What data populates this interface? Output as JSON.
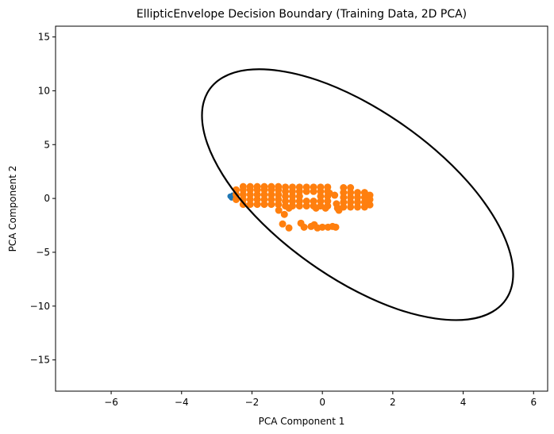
{
  "chart_data": {
    "type": "scatter",
    "title": "EllipticEnvelope Decision Boundary (Training Data, 2D PCA)",
    "xlabel": "PCA Component 1",
    "ylabel": "PCA Component 2",
    "xlim": [
      -7.58,
      6.4
    ],
    "ylim": [
      -17.9,
      16.0
    ],
    "xticks": [
      -6,
      -4,
      -2,
      0,
      2,
      4,
      6
    ],
    "yticks": [
      -15,
      -10,
      -5,
      0,
      5,
      10,
      15
    ],
    "xtick_labels": [
      "−6",
      "−4",
      "−2",
      "0",
      "2",
      "4",
      "6"
    ],
    "ytick_labels": [
      "−15",
      "−10",
      "−5",
      "0",
      "5",
      "10",
      "15"
    ],
    "grid": false,
    "colors": {
      "inlier": "#ff7f0e",
      "outlier": "#1f77b4",
      "boundary": "#000000"
    },
    "boundary": [
      [
        5.42,
        -7.0
      ],
      [
        5.27,
        -4.41
      ],
      [
        4.83,
        -1.49
      ],
      [
        4.13,
        1.55
      ],
      [
        3.21,
        4.51
      ],
      [
        2.14,
        7.18
      ],
      [
        1.0,
        9.39
      ],
      [
        -0.14,
        10.99
      ],
      [
        -1.21,
        11.85
      ],
      [
        -2.13,
        11.94
      ],
      [
        -2.83,
        11.23
      ],
      [
        -3.27,
        9.79
      ],
      [
        -3.42,
        7.7
      ],
      [
        -3.27,
        5.1
      ],
      [
        -2.83,
        2.19
      ],
      [
        -2.13,
        -0.85
      ],
      [
        -1.21,
        -3.81
      ],
      [
        -0.14,
        -6.48
      ],
      [
        1.0,
        -8.69
      ],
      [
        2.14,
        -10.29
      ],
      [
        3.21,
        -11.15
      ],
      [
        4.13,
        -11.24
      ],
      [
        4.83,
        -10.53
      ],
      [
        5.27,
        -9.09
      ]
    ],
    "outlier_points": [
      [
        -2.62,
        0.2
      ],
      [
        -2.58,
        0.05
      ],
      [
        -2.55,
        0.3
      ],
      [
        -2.5,
        0.1
      ]
    ],
    "inlier_points": [
      [
        -2.45,
        -0.1
      ],
      [
        -2.45,
        0.35
      ],
      [
        -2.45,
        0.8
      ],
      [
        -2.25,
        -0.55
      ],
      [
        -2.25,
        -0.1
      ],
      [
        -2.25,
        0.35
      ],
      [
        -2.25,
        0.8
      ],
      [
        -2.25,
        1.1
      ],
      [
        -2.05,
        -0.55
      ],
      [
        -2.05,
        -0.1
      ],
      [
        -2.05,
        0.35
      ],
      [
        -2.05,
        0.8
      ],
      [
        -2.05,
        1.1
      ],
      [
        -1.85,
        -0.55
      ],
      [
        -1.85,
        -0.1
      ],
      [
        -1.85,
        0.35
      ],
      [
        -1.85,
        0.8
      ],
      [
        -1.85,
        1.1
      ],
      [
        -1.65,
        -0.55
      ],
      [
        -1.65,
        -0.1
      ],
      [
        -1.65,
        0.35
      ],
      [
        -1.65,
        0.8
      ],
      [
        -1.65,
        1.1
      ],
      [
        -1.45,
        -0.55
      ],
      [
        -1.45,
        -0.1
      ],
      [
        -1.45,
        0.35
      ],
      [
        -1.45,
        0.8
      ],
      [
        -1.45,
        1.1
      ],
      [
        -1.25,
        -0.55
      ],
      [
        -1.25,
        -0.1
      ],
      [
        -1.25,
        0.35
      ],
      [
        -1.25,
        0.8
      ],
      [
        -1.25,
        1.1
      ],
      [
        -1.05,
        -0.7
      ],
      [
        -1.05,
        -0.25
      ],
      [
        -1.05,
        0.2
      ],
      [
        -1.05,
        0.65
      ],
      [
        -1.05,
        1.05
      ],
      [
        -0.85,
        -0.7
      ],
      [
        -0.85,
        -0.25
      ],
      [
        -0.85,
        0.2
      ],
      [
        -0.85,
        0.65
      ],
      [
        -0.85,
        1.05
      ],
      [
        -0.65,
        -0.7
      ],
      [
        -0.65,
        -0.25
      ],
      [
        -0.65,
        0.2
      ],
      [
        -0.65,
        0.65
      ],
      [
        -0.65,
        1.05
      ],
      [
        -0.45,
        -0.7
      ],
      [
        -0.45,
        -0.25
      ],
      [
        -0.45,
        0.65
      ],
      [
        -0.45,
        1.05
      ],
      [
        -0.25,
        -0.7
      ],
      [
        -0.25,
        -0.25
      ],
      [
        -0.25,
        0.65
      ],
      [
        -0.25,
        1.05
      ],
      [
        -0.05,
        -0.7
      ],
      [
        -0.05,
        -0.25
      ],
      [
        -0.05,
        0.2
      ],
      [
        -0.05,
        0.65
      ],
      [
        -0.05,
        1.05
      ],
      [
        0.15,
        -0.7
      ],
      [
        0.15,
        -0.25
      ],
      [
        0.15,
        0.2
      ],
      [
        0.15,
        0.65
      ],
      [
        0.15,
        1.05
      ],
      [
        0.4,
        -0.5
      ],
      [
        0.35,
        0.3
      ],
      [
        0.2,
        0.5
      ],
      [
        0.6,
        -0.8
      ],
      [
        0.6,
        -0.35
      ],
      [
        0.6,
        0.1
      ],
      [
        0.6,
        0.55
      ],
      [
        0.6,
        1.0
      ],
      [
        0.8,
        -0.8
      ],
      [
        0.8,
        -0.35
      ],
      [
        0.8,
        0.1
      ],
      [
        0.8,
        0.55
      ],
      [
        0.8,
        1.0
      ],
      [
        1.0,
        -0.8
      ],
      [
        1.0,
        -0.35
      ],
      [
        1.0,
        0.1
      ],
      [
        1.0,
        0.55
      ],
      [
        1.2,
        -0.8
      ],
      [
        1.2,
        -0.35
      ],
      [
        1.2,
        0.1
      ],
      [
        1.2,
        0.55
      ],
      [
        1.35,
        -0.6
      ],
      [
        1.35,
        -0.1
      ],
      [
        1.35,
        0.3
      ],
      [
        -1.24,
        -1.1
      ],
      [
        -1.08,
        -1.48
      ],
      [
        -0.95,
        -0.9
      ],
      [
        -1.13,
        -2.37
      ],
      [
        -0.95,
        -2.74
      ],
      [
        -0.61,
        -2.3
      ],
      [
        -0.52,
        -2.67
      ],
      [
        -0.32,
        -2.6
      ],
      [
        -0.23,
        -2.44
      ],
      [
        -0.14,
        -2.74
      ],
      [
        0.0,
        -2.67
      ],
      [
        0.16,
        -2.67
      ],
      [
        0.29,
        -2.6
      ],
      [
        0.38,
        -2.67
      ],
      [
        -0.18,
        -0.9
      ],
      [
        0.09,
        -0.9
      ],
      [
        0.43,
        -0.9
      ],
      [
        0.47,
        -1.1
      ]
    ]
  }
}
